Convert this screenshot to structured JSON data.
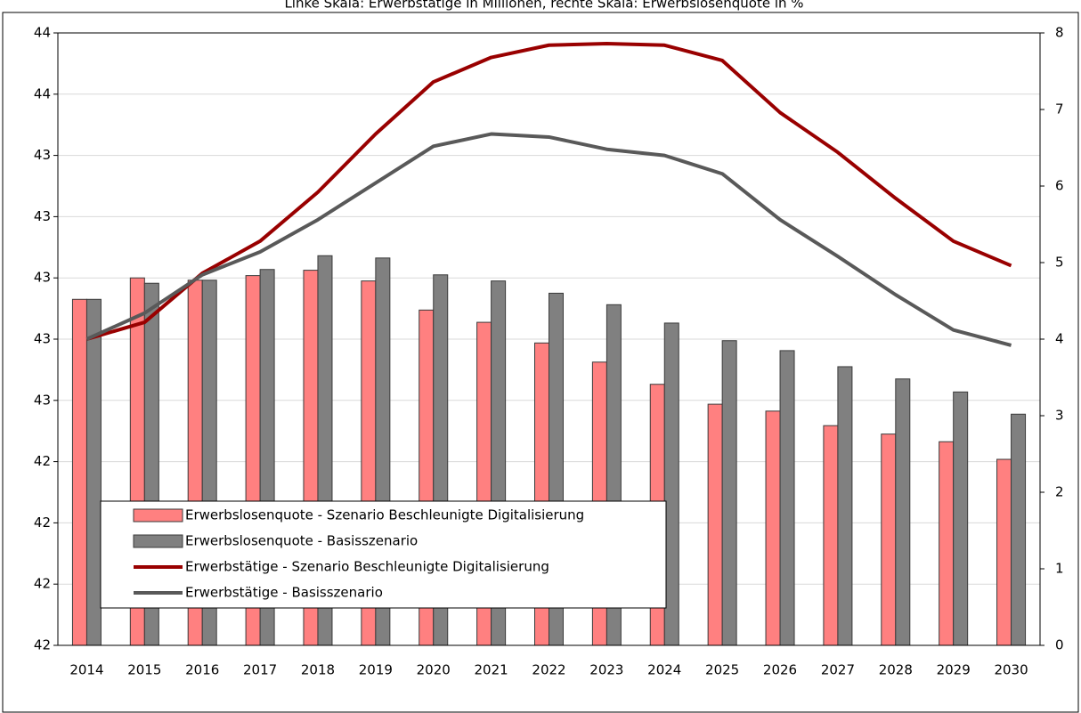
{
  "chart_data": {
    "type": "combo",
    "title": "Linke Skala: Erwerbstätige in Millionen, rechte Skala: Erwerbslosenquote in %",
    "categories": [
      "2014",
      "2015",
      "2016",
      "2017",
      "2018",
      "2019",
      "2020",
      "2021",
      "2022",
      "2023",
      "2024",
      "2025",
      "2026",
      "2027",
      "2028",
      "2029",
      "2030"
    ],
    "series": [
      {
        "name": "Erwerbslosenquote - Szenario Beschleunigte Digitalisierung",
        "type": "bar",
        "axis": "y2",
        "color": "#ff8080",
        "values": [
          4.52,
          4.8,
          4.77,
          4.83,
          4.9,
          4.76,
          4.38,
          4.22,
          3.95,
          3.7,
          3.41,
          3.15,
          3.06,
          2.87,
          2.76,
          2.66,
          2.43
        ]
      },
      {
        "name": "Erwerbslosenquote - Basisszenario",
        "type": "bar",
        "axis": "y2",
        "color": "#808080",
        "values": [
          4.52,
          4.73,
          4.77,
          4.91,
          5.09,
          5.06,
          4.84,
          4.76,
          4.6,
          4.45,
          4.21,
          3.98,
          3.85,
          3.64,
          3.48,
          3.31,
          3.02
        ]
      },
      {
        "name": "Erwerbstätige - Szenario Beschleunigte Digitalisierung",
        "type": "line",
        "axis": "y",
        "color": "#990000",
        "values": [
          42.8,
          42.855,
          43.015,
          43.12,
          43.28,
          43.47,
          43.64,
          43.72,
          43.76,
          43.765,
          43.76,
          43.71,
          43.54,
          43.41,
          43.26,
          43.12,
          43.04
        ]
      },
      {
        "name": "Erwerbstätige - Basisszenario",
        "type": "line",
        "axis": "y",
        "color": "#595959",
        "values": [
          42.8,
          42.885,
          43.01,
          43.085,
          43.19,
          43.31,
          43.43,
          43.47,
          43.46,
          43.42,
          43.4,
          43.34,
          43.19,
          43.07,
          42.945,
          42.83,
          42.78
        ]
      }
    ],
    "ylim": [
      41.8,
      43.8
    ],
    "yticks": [
      {
        "value": 41.8,
        "label": "42"
      },
      {
        "value": 42.0,
        "label": "42"
      },
      {
        "value": 42.2,
        "label": "42"
      },
      {
        "value": 42.4,
        "label": "42"
      },
      {
        "value": 42.6,
        "label": "43"
      },
      {
        "value": 42.8,
        "label": "43"
      },
      {
        "value": 43.0,
        "label": "43"
      },
      {
        "value": 43.2,
        "label": "43"
      },
      {
        "value": 43.4,
        "label": "43"
      },
      {
        "value": 43.6,
        "label": "44"
      },
      {
        "value": 43.8,
        "label": "44"
      }
    ],
    "y2lim": [
      0,
      8
    ],
    "y2ticks": [
      0,
      1,
      2,
      3,
      4,
      5,
      6,
      7,
      8
    ],
    "grid": true,
    "legend": "lower left"
  }
}
